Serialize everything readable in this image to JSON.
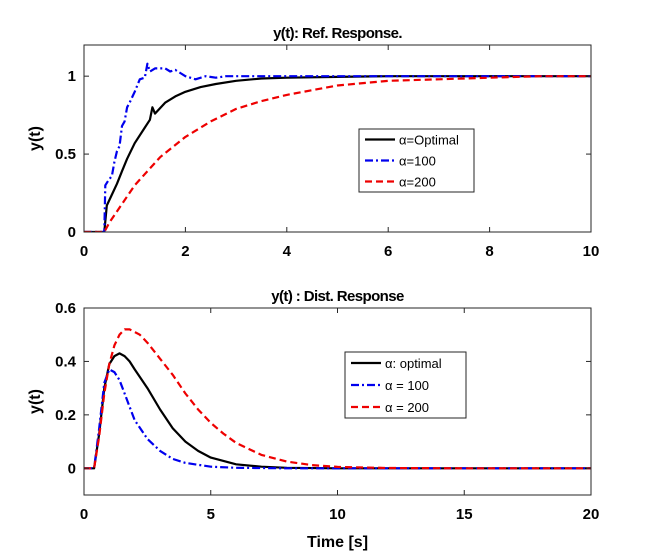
{
  "chart_data": [
    {
      "type": "line",
      "title": "y(t): Ref. Response.",
      "xlabel": "",
      "ylabel": "y(t)",
      "xlim": [
        0,
        10
      ],
      "ylim": [
        0,
        1.2
      ],
      "xticks": [
        0,
        2,
        4,
        6,
        8,
        10
      ],
      "xtick_labels": [
        "0",
        "2",
        "4",
        "6",
        "8",
        "10"
      ],
      "yticks": [
        0,
        0.5,
        1
      ],
      "ytick_labels": [
        "0",
        "0.5",
        "1"
      ],
      "grid": false,
      "legend_position": "right-center",
      "series": [
        {
          "name": "α=Optimal",
          "color": "#000000",
          "style": "solid",
          "x": [
            0,
            0.4,
            0.45,
            0.55,
            0.65,
            0.75,
            0.85,
            1.0,
            1.2,
            1.3,
            1.35,
            1.4,
            1.6,
            1.8,
            2.0,
            2.3,
            2.6,
            3.0,
            3.5,
            4.0,
            5.0,
            6.0,
            8.0,
            10.0
          ],
          "y": [
            0,
            0,
            0.17,
            0.24,
            0.31,
            0.39,
            0.47,
            0.57,
            0.67,
            0.72,
            0.8,
            0.76,
            0.83,
            0.87,
            0.9,
            0.93,
            0.95,
            0.97,
            0.985,
            0.99,
            0.995,
            1.0,
            1.0,
            1.0
          ]
        },
        {
          "name": "α=100",
          "color": "#0000ee",
          "style": "dashdot",
          "x": [
            0,
            0.4,
            0.42,
            0.48,
            0.55,
            0.6,
            0.65,
            0.7,
            0.75,
            0.8,
            0.85,
            0.9,
            1.0,
            1.1,
            1.2,
            1.25,
            1.3,
            1.4,
            1.5,
            1.6,
            1.7,
            1.8,
            1.9,
            2.0,
            2.2,
            2.4,
            2.6,
            2.8,
            3.0,
            3.5,
            4.0,
            5.0,
            6.0,
            8.0,
            10.0
          ],
          "y": [
            0,
            0,
            0.3,
            0.33,
            0.36,
            0.45,
            0.52,
            0.55,
            0.68,
            0.71,
            0.8,
            0.83,
            0.9,
            0.98,
            0.99,
            1.08,
            1.03,
            1.05,
            1.05,
            1.05,
            1.03,
            1.04,
            1.02,
            1.0,
            0.98,
            1.0,
            0.99,
            1.0,
            1.0,
            1.0,
            1.0,
            1.0,
            1.0,
            1.0,
            1.0
          ]
        },
        {
          "name": "α=200",
          "color": "#ee0000",
          "style": "dashed",
          "x": [
            0,
            0.4,
            0.5,
            1.0,
            1.5,
            2.0,
            2.5,
            3.0,
            3.5,
            4.0,
            4.5,
            5.0,
            6.0,
            7.0,
            8.0,
            9.0,
            10.0
          ],
          "y": [
            0,
            0,
            0.06,
            0.3,
            0.48,
            0.61,
            0.71,
            0.79,
            0.84,
            0.88,
            0.91,
            0.94,
            0.97,
            0.98,
            0.99,
            1.0,
            1.0
          ]
        }
      ]
    },
    {
      "type": "line",
      "title": "y(t) : Dist. Response",
      "xlabel": "Time [s]",
      "ylabel": "y(t)",
      "xlim": [
        0,
        20
      ],
      "ylim": [
        -0.1,
        0.6
      ],
      "xticks": [
        0,
        5,
        10,
        15,
        20
      ],
      "xtick_labels": [
        "0",
        "5",
        "10",
        "15",
        "20"
      ],
      "yticks": [
        0,
        0.2,
        0.4,
        0.6
      ],
      "ytick_labels": [
        "0",
        "0.2",
        "0.4",
        "0.6"
      ],
      "grid": false,
      "legend_position": "right-center",
      "series": [
        {
          "name": "α: optimal",
          "color": "#000000",
          "style": "solid",
          "x": [
            0,
            0.4,
            0.6,
            0.8,
            1.0,
            1.2,
            1.4,
            1.6,
            1.8,
            2.0,
            2.5,
            3.0,
            3.5,
            4.0,
            4.5,
            5.0,
            6.0,
            7.0,
            8.0,
            10.0,
            15.0,
            20.0
          ],
          "y": [
            0,
            0,
            0.13,
            0.3,
            0.39,
            0.42,
            0.43,
            0.42,
            0.4,
            0.37,
            0.3,
            0.22,
            0.15,
            0.1,
            0.065,
            0.04,
            0.015,
            0.006,
            0.002,
            0,
            0,
            0
          ]
        },
        {
          "name": "α = 100",
          "color": "#0000ee",
          "style": "dashdot",
          "x": [
            0,
            0.4,
            0.6,
            0.8,
            1.0,
            1.2,
            1.4,
            1.6,
            1.8,
            2.0,
            2.5,
            3.0,
            3.5,
            4.0,
            5.0,
            6.0,
            8.0,
            10.0,
            15.0,
            20.0
          ],
          "y": [
            0,
            0,
            0.15,
            0.32,
            0.37,
            0.36,
            0.33,
            0.28,
            0.23,
            0.18,
            0.11,
            0.065,
            0.035,
            0.02,
            0.006,
            0.002,
            0,
            0,
            0,
            0
          ]
        },
        {
          "name": "α = 200",
          "color": "#ee0000",
          "style": "dashed",
          "x": [
            0,
            0.4,
            0.6,
            0.8,
            1.0,
            1.2,
            1.4,
            1.6,
            1.8,
            2.0,
            2.2,
            2.5,
            3.0,
            3.5,
            4.0,
            4.5,
            5.0,
            5.5,
            6.0,
            7.0,
            8.0,
            9.0,
            10.0,
            12.0,
            15.0,
            20.0
          ],
          "y": [
            0,
            0,
            0.12,
            0.28,
            0.39,
            0.46,
            0.5,
            0.52,
            0.52,
            0.51,
            0.5,
            0.47,
            0.41,
            0.35,
            0.28,
            0.22,
            0.17,
            0.13,
            0.095,
            0.05,
            0.025,
            0.012,
            0.005,
            0.001,
            0,
            0
          ]
        }
      ]
    }
  ]
}
